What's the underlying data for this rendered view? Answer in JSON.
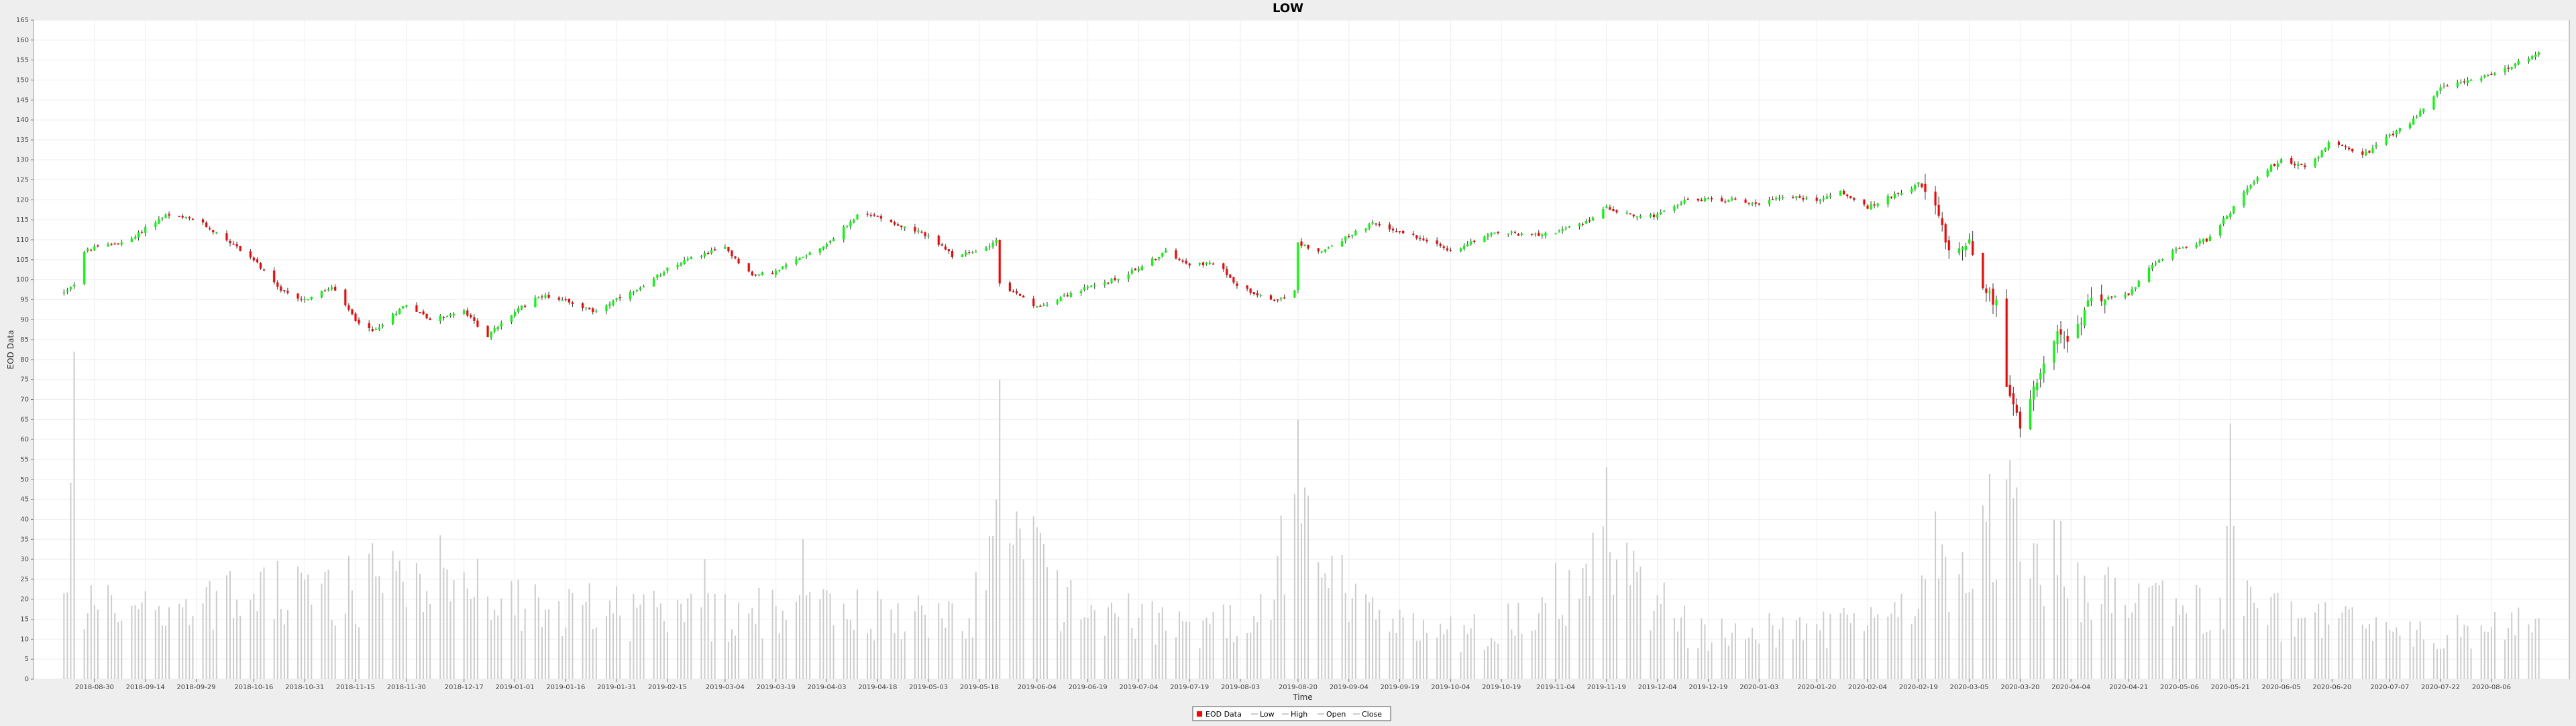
{
  "chart_data": {
    "type": "candlestick",
    "title": "LOW",
    "xlabel": "Time",
    "ylabel": "EOD Data",
    "ylim": [
      0,
      165
    ],
    "y_ticks": [
      0,
      5,
      10,
      15,
      20,
      25,
      30,
      35,
      40,
      45,
      50,
      55,
      60,
      65,
      70,
      75,
      80,
      85,
      90,
      95,
      100,
      105,
      110,
      115,
      120,
      125,
      130,
      135,
      140,
      145,
      150,
      155,
      160,
      165
    ],
    "x_ticks": [
      "2018-08-30",
      "2018-09-14",
      "2018-09-29",
      "2018-10-16",
      "2018-10-31",
      "2018-11-15",
      "2018-11-30",
      "2018-12-17",
      "2019-01-01",
      "2019-01-16",
      "2019-01-31",
      "2019-02-15",
      "2019-03-04",
      "2019-03-19",
      "2019-04-03",
      "2019-04-18",
      "2019-05-03",
      "2019-05-18",
      "2019-06-04",
      "2019-06-19",
      "2019-07-04",
      "2019-07-19",
      "2019-08-03",
      "2019-08-20",
      "2019-09-04",
      "2019-09-19",
      "2019-10-04",
      "2019-10-19",
      "2019-11-04",
      "2019-11-19",
      "2019-12-04",
      "2019-12-19",
      "2020-01-03",
      "2020-01-20",
      "2020-02-04",
      "2020-02-19",
      "2020-03-05",
      "2020-03-20",
      "2020-04-04",
      "2020-04-21",
      "2020-05-06",
      "2020-05-21",
      "2020-06-05",
      "2020-06-20",
      "2020-07-07",
      "2020-07-22",
      "2020-08-06"
    ],
    "x_range": [
      "2018-08-21",
      "2020-08-20"
    ],
    "grid": true,
    "legend": {
      "position": "bottom",
      "entries": [
        "EOD Data",
        "Low",
        "High",
        "Open",
        "Close"
      ]
    },
    "colors": {
      "up": "#00ff00",
      "down": "#ff0000",
      "wick": "#333333",
      "volume": "#cccccc",
      "grid": "#eeeeee"
    },
    "price_path": [
      {
        "date": "2018-08-21",
        "close": 97
      },
      {
        "date": "2018-08-24",
        "close": 99
      },
      {
        "date": "2018-08-27",
        "close": 107
      },
      {
        "date": "2018-08-30",
        "close": 108
      },
      {
        "date": "2018-09-10",
        "close": 110
      },
      {
        "date": "2018-09-14",
        "close": 113
      },
      {
        "date": "2018-09-20",
        "close": 116
      },
      {
        "date": "2018-09-29",
        "close": 115
      },
      {
        "date": "2018-10-08",
        "close": 110
      },
      {
        "date": "2018-10-16",
        "close": 105
      },
      {
        "date": "2018-10-24",
        "close": 97
      },
      {
        "date": "2018-10-31",
        "close": 95
      },
      {
        "date": "2018-11-08",
        "close": 98
      },
      {
        "date": "2018-11-15",
        "close": 90
      },
      {
        "date": "2018-11-20",
        "close": 87
      },
      {
        "date": "2018-11-30",
        "close": 94
      },
      {
        "date": "2018-12-07",
        "close": 90
      },
      {
        "date": "2018-12-17",
        "close": 92
      },
      {
        "date": "2018-12-24",
        "close": 86
      },
      {
        "date": "2019-01-01",
        "close": 92
      },
      {
        "date": "2019-01-08",
        "close": 96
      },
      {
        "date": "2019-01-16",
        "close": 95
      },
      {
        "date": "2019-01-24",
        "close": 92
      },
      {
        "date": "2019-01-31",
        "close": 95
      },
      {
        "date": "2019-02-08",
        "close": 98
      },
      {
        "date": "2019-02-15",
        "close": 103
      },
      {
        "date": "2019-02-24",
        "close": 106
      },
      {
        "date": "2019-03-04",
        "close": 108
      },
      {
        "date": "2019-03-12",
        "close": 101
      },
      {
        "date": "2019-03-19",
        "close": 102
      },
      {
        "date": "2019-03-27",
        "close": 106
      },
      {
        "date": "2019-04-03",
        "close": 109
      },
      {
        "date": "2019-04-12",
        "close": 116
      },
      {
        "date": "2019-04-18",
        "close": 116
      },
      {
        "date": "2019-04-26",
        "close": 113
      },
      {
        "date": "2019-05-03",
        "close": 111
      },
      {
        "date": "2019-05-10",
        "close": 106
      },
      {
        "date": "2019-05-18",
        "close": 107
      },
      {
        "date": "2019-05-23",
        "close": 110
      },
      {
        "date": "2019-05-24",
        "close": 99
      },
      {
        "date": "2019-06-04",
        "close": 93
      },
      {
        "date": "2019-06-12",
        "close": 96
      },
      {
        "date": "2019-06-19",
        "close": 98
      },
      {
        "date": "2019-06-27",
        "close": 100
      },
      {
        "date": "2019-07-04",
        "close": 103
      },
      {
        "date": "2019-07-12",
        "close": 107
      },
      {
        "date": "2019-07-19",
        "close": 104
      },
      {
        "date": "2019-07-27",
        "close": 104
      },
      {
        "date": "2019-08-03",
        "close": 98
      },
      {
        "date": "2019-08-13",
        "close": 95
      },
      {
        "date": "2019-08-19",
        "close": 97
      },
      {
        "date": "2019-08-20",
        "close": 109
      },
      {
        "date": "2019-08-27",
        "close": 107
      },
      {
        "date": "2019-09-04",
        "close": 111
      },
      {
        "date": "2019-09-11",
        "close": 114
      },
      {
        "date": "2019-09-19",
        "close": 112
      },
      {
        "date": "2019-09-27",
        "close": 110
      },
      {
        "date": "2019-10-04",
        "close": 107
      },
      {
        "date": "2019-10-11",
        "close": 110
      },
      {
        "date": "2019-10-19",
        "close": 112
      },
      {
        "date": "2019-10-27",
        "close": 111
      },
      {
        "date": "2019-11-04",
        "close": 112
      },
      {
        "date": "2019-11-12",
        "close": 114
      },
      {
        "date": "2019-11-19",
        "close": 118
      },
      {
        "date": "2019-11-27",
        "close": 116
      },
      {
        "date": "2019-12-04",
        "close": 116
      },
      {
        "date": "2019-12-12",
        "close": 120
      },
      {
        "date": "2019-12-19",
        "close": 120
      },
      {
        "date": "2019-12-27",
        "close": 120
      },
      {
        "date": "2020-01-03",
        "close": 119
      },
      {
        "date": "2020-01-10",
        "close": 121
      },
      {
        "date": "2020-01-20",
        "close": 120
      },
      {
        "date": "2020-01-27",
        "close": 122
      },
      {
        "date": "2020-02-04",
        "close": 118
      },
      {
        "date": "2020-02-11",
        "close": 121
      },
      {
        "date": "2020-02-19",
        "close": 124
      },
      {
        "date": "2020-02-24",
        "close": 118
      },
      {
        "date": "2020-02-28",
        "close": 107
      },
      {
        "date": "2020-03-05",
        "close": 110
      },
      {
        "date": "2020-03-09",
        "close": 98
      },
      {
        "date": "2020-03-13",
        "close": 94
      },
      {
        "date": "2020-03-16",
        "close": 72
      },
      {
        "date": "2020-03-20",
        "close": 64
      },
      {
        "date": "2020-03-24",
        "close": 74
      },
      {
        "date": "2020-03-31",
        "close": 86
      },
      {
        "date": "2020-04-04",
        "close": 84
      },
      {
        "date": "2020-04-10",
        "close": 96
      },
      {
        "date": "2020-04-21",
        "close": 96
      },
      {
        "date": "2020-04-28",
        "close": 104
      },
      {
        "date": "2020-05-06",
        "close": 108
      },
      {
        "date": "2020-05-14",
        "close": 110
      },
      {
        "date": "2020-05-21",
        "close": 117
      },
      {
        "date": "2020-05-29",
        "close": 126
      },
      {
        "date": "2020-06-05",
        "close": 130
      },
      {
        "date": "2020-06-13",
        "close": 128
      },
      {
        "date": "2020-06-20",
        "close": 135
      },
      {
        "date": "2020-06-29",
        "close": 131
      },
      {
        "date": "2020-07-07",
        "close": 136
      },
      {
        "date": "2020-07-14",
        "close": 140
      },
      {
        "date": "2020-07-22",
        "close": 148
      },
      {
        "date": "2020-07-30",
        "close": 150
      },
      {
        "date": "2020-08-06",
        "close": 151
      },
      {
        "date": "2020-08-20",
        "close": 157
      }
    ],
    "volume_path": [
      {
        "date": "2018-08-21",
        "volume": 20
      },
      {
        "date": "2018-09-21",
        "volume": 18
      },
      {
        "date": "2018-10-23",
        "volume": 22
      },
      {
        "date": "2018-11-26",
        "volume": 24
      },
      {
        "date": "2018-12-20",
        "volume": 23
      },
      {
        "date": "2019-01-20",
        "volume": 18
      },
      {
        "date": "2019-02-20",
        "volume": 16
      },
      {
        "date": "2019-03-20",
        "volume": 18
      },
      {
        "date": "2019-04-20",
        "volume": 17
      },
      {
        "date": "2019-05-15",
        "volume": 14
      },
      {
        "date": "2019-05-24",
        "volume": 45
      },
      {
        "date": "2019-06-10",
        "volume": 22
      },
      {
        "date": "2019-07-15",
        "volume": 13
      },
      {
        "date": "2019-08-05",
        "volume": 16
      },
      {
        "date": "2019-08-20",
        "volume": 38
      },
      {
        "date": "2019-09-15",
        "volume": 13
      },
      {
        "date": "2019-10-15",
        "volume": 12
      },
      {
        "date": "2019-11-19",
        "volume": 30
      },
      {
        "date": "2019-12-15",
        "volume": 12
      },
      {
        "date": "2020-01-15",
        "volume": 13
      },
      {
        "date": "2020-02-15",
        "volume": 16
      },
      {
        "date": "2020-02-28",
        "volume": 30
      },
      {
        "date": "2020-03-16",
        "volume": 42
      },
      {
        "date": "2020-03-31",
        "volume": 30
      },
      {
        "date": "2020-04-20",
        "volume": 18
      },
      {
        "date": "2020-05-20",
        "volume": 20
      },
      {
        "date": "2020-06-20",
        "volume": 14
      },
      {
        "date": "2020-07-20",
        "volume": 12
      },
      {
        "date": "2020-08-20",
        "volume": 14
      }
    ],
    "volume_spikes": [
      {
        "date": "2018-08-24",
        "volume": 82
      },
      {
        "date": "2018-09-22",
        "volume": 30
      },
      {
        "date": "2018-11-20",
        "volume": 34
      },
      {
        "date": "2018-12-10",
        "volume": 36
      },
      {
        "date": "2019-02-26",
        "volume": 30
      },
      {
        "date": "2019-03-27",
        "volume": 35
      },
      {
        "date": "2019-05-24",
        "volume": 75
      },
      {
        "date": "2019-05-29",
        "volume": 42
      },
      {
        "date": "2019-06-04",
        "volume": 38
      },
      {
        "date": "2019-06-07",
        "volume": 28
      },
      {
        "date": "2019-08-20",
        "volume": 65
      },
      {
        "date": "2019-11-19",
        "volume": 53
      },
      {
        "date": "2020-02-24",
        "volume": 42
      },
      {
        "date": "2020-03-16",
        "volume": 50
      },
      {
        "date": "2020-03-19",
        "volume": 48
      },
      {
        "date": "2020-05-21",
        "volume": 64
      }
    ]
  }
}
